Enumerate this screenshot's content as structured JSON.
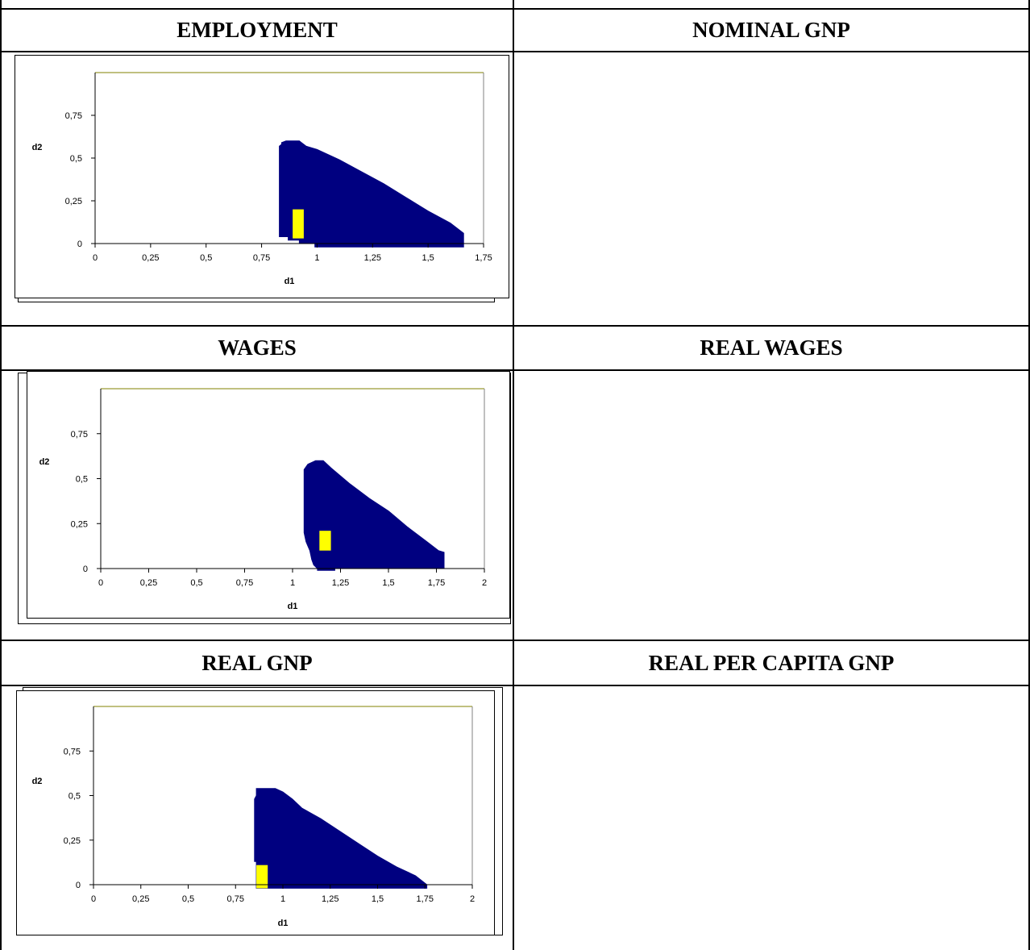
{
  "headers": {
    "employment": "EMPLOYMENT",
    "nominal_gnp": "NOMINAL GNP",
    "wages": "WAGES",
    "real_wages": "REAL WAGES",
    "real_gnp": "REAL GNP",
    "real_per_capita_gnp": "REAL PER CAPITA GNP"
  },
  "colors": {
    "region": "#000080",
    "point": "#ffff00",
    "border_top": "#808000"
  },
  "chart_data": [
    {
      "type": "heatmap",
      "panel": "EMPLOYMENT",
      "xlabel": "d1",
      "ylabel": "d2",
      "xlim": [
        0,
        1.75
      ],
      "ylim": [
        0,
        1
      ],
      "xticks": [
        "0",
        "0,25",
        "0,5",
        "0,75",
        "1",
        "1,25",
        "1,5",
        "1,75"
      ],
      "yticks": [
        "0",
        "0,25",
        "0,5",
        "0,75"
      ],
      "region_outline": [
        [
          0.83,
          0.04
        ],
        [
          0.83,
          0.57
        ],
        [
          0.84,
          0.58
        ],
        [
          0.84,
          0.59
        ],
        [
          0.86,
          0.6
        ],
        [
          0.92,
          0.6
        ],
        [
          0.93,
          0.59
        ],
        [
          0.95,
          0.57
        ],
        [
          1.0,
          0.55
        ],
        [
          1.1,
          0.49
        ],
        [
          1.2,
          0.42
        ],
        [
          1.3,
          0.35
        ],
        [
          1.4,
          0.27
        ],
        [
          1.5,
          0.19
        ],
        [
          1.6,
          0.12
        ],
        [
          1.66,
          0.06
        ],
        [
          1.66,
          -0.02
        ],
        [
          0.99,
          -0.02
        ],
        [
          0.99,
          0.0
        ],
        [
          0.92,
          0.0
        ],
        [
          0.92,
          0.02
        ],
        [
          0.87,
          0.02
        ],
        [
          0.87,
          0.04
        ]
      ],
      "highlight": {
        "x": [
          0.89,
          0.94
        ],
        "y": [
          0.03,
          0.2
        ]
      }
    },
    {
      "type": "heatmap",
      "panel": "WAGES",
      "xlabel": "d1",
      "ylabel": "d2",
      "xlim": [
        0,
        2
      ],
      "ylim": [
        0,
        1
      ],
      "xticks": [
        "0",
        "0,25",
        "0,5",
        "0,75",
        "1",
        "1,25",
        "1,5",
        "1,75",
        "2"
      ],
      "yticks": [
        "0",
        "0,25",
        "0,5",
        "0,75"
      ],
      "region_outline": [
        [
          1.06,
          0.2
        ],
        [
          1.06,
          0.55
        ],
        [
          1.08,
          0.58
        ],
        [
          1.12,
          0.6
        ],
        [
          1.16,
          0.6
        ],
        [
          1.2,
          0.56
        ],
        [
          1.3,
          0.47
        ],
        [
          1.4,
          0.39
        ],
        [
          1.5,
          0.32
        ],
        [
          1.6,
          0.23
        ],
        [
          1.7,
          0.15
        ],
        [
          1.76,
          0.1
        ],
        [
          1.79,
          0.09
        ],
        [
          1.79,
          0.0
        ],
        [
          1.22,
          0.0
        ],
        [
          1.22,
          -0.01
        ],
        [
          1.13,
          -0.01
        ],
        [
          1.13,
          0.0
        ],
        [
          1.11,
          0.02
        ],
        [
          1.1,
          0.05
        ],
        [
          1.09,
          0.1
        ],
        [
          1.07,
          0.15
        ]
      ],
      "highlight": {
        "x": [
          1.14,
          1.2
        ],
        "y": [
          0.1,
          0.21
        ]
      }
    },
    {
      "type": "heatmap",
      "panel": "REAL GNP",
      "xlabel": "d1",
      "ylabel": "d2",
      "xlim": [
        0,
        2
      ],
      "ylim": [
        0,
        1
      ],
      "xticks": [
        "0",
        "0,25",
        "0,5",
        "0,75",
        "1",
        "1,25",
        "1,5",
        "1,75",
        "2"
      ],
      "yticks": [
        "0",
        "0,25",
        "0,5",
        "0,75"
      ],
      "region_outline": [
        [
          0.85,
          0.13
        ],
        [
          0.85,
          0.48
        ],
        [
          0.86,
          0.5
        ],
        [
          0.86,
          0.54
        ],
        [
          0.96,
          0.54
        ],
        [
          1.0,
          0.52
        ],
        [
          1.05,
          0.48
        ],
        [
          1.1,
          0.43
        ],
        [
          1.2,
          0.37
        ],
        [
          1.3,
          0.3
        ],
        [
          1.4,
          0.23
        ],
        [
          1.5,
          0.16
        ],
        [
          1.6,
          0.1
        ],
        [
          1.7,
          0.05
        ],
        [
          1.76,
          0.0
        ],
        [
          1.76,
          -0.02
        ],
        [
          0.86,
          -0.02
        ],
        [
          0.86,
          0.13
        ]
      ],
      "highlight": {
        "x": [
          0.86,
          0.92
        ],
        "y": [
          -0.02,
          0.11
        ]
      }
    }
  ]
}
